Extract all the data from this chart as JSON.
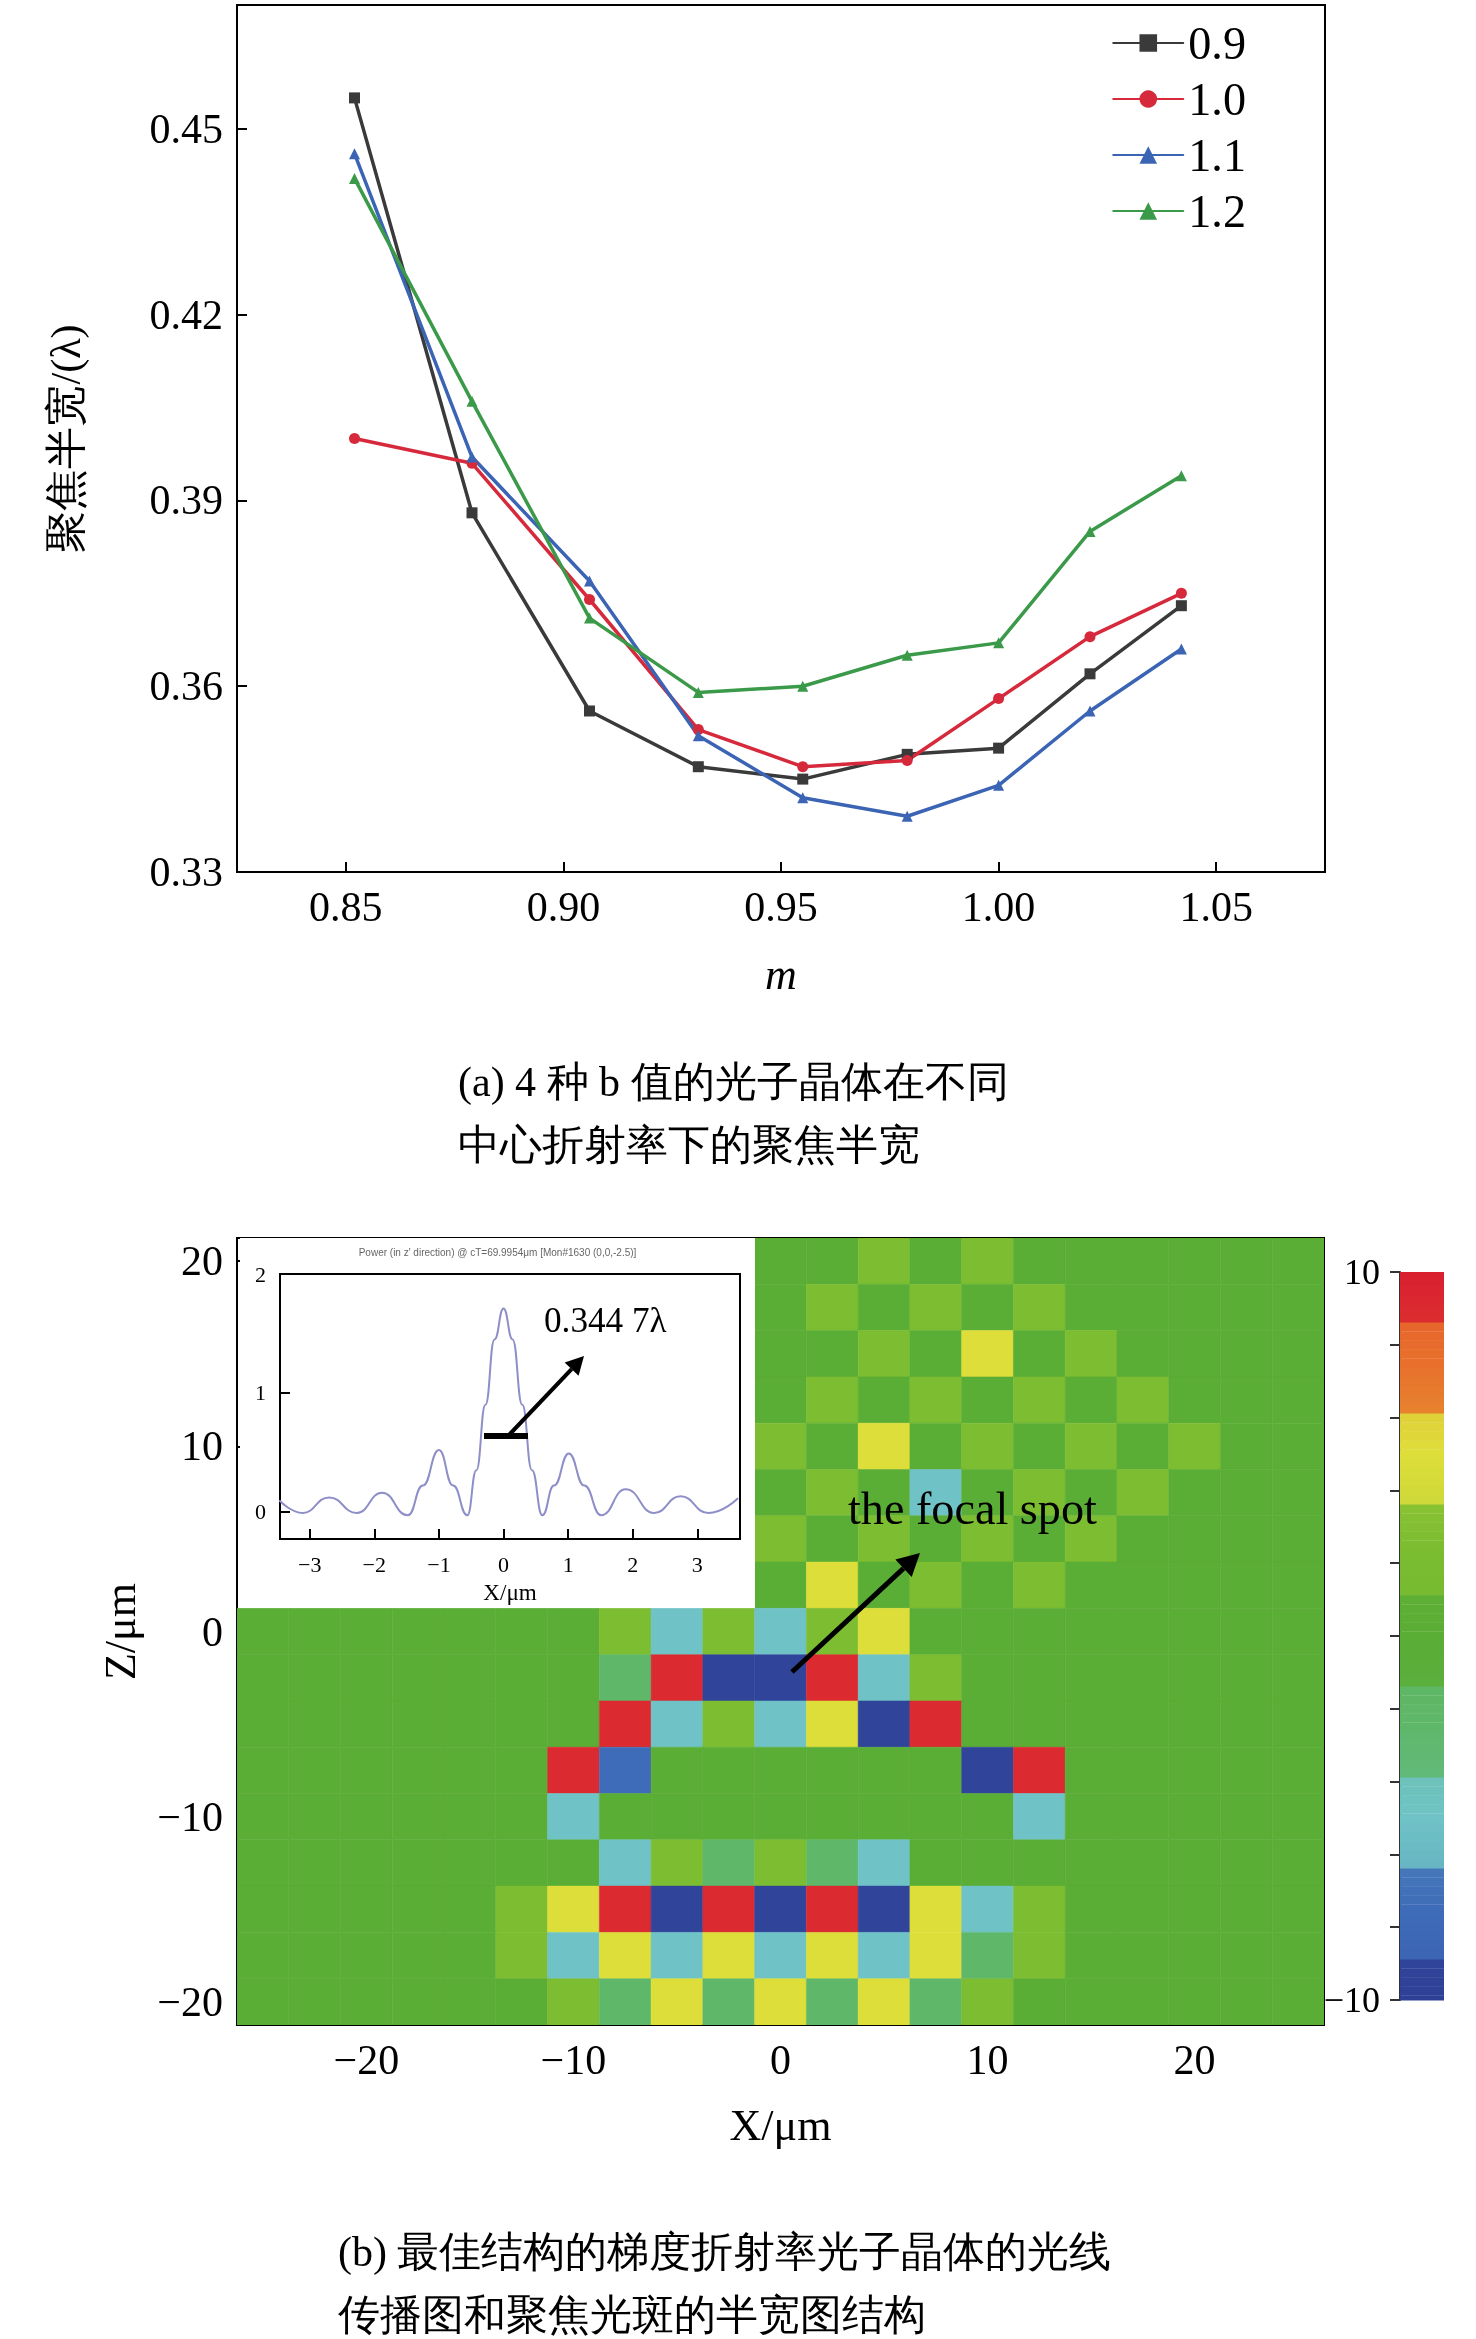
{
  "chart_data": [
    {
      "type": "line",
      "xlabel": "m",
      "ylabel": "聚焦半宽/(λ)",
      "x": [
        0.852,
        0.879,
        0.906,
        0.931,
        0.955,
        0.979,
        1.0,
        1.021,
        1.042
      ],
      "series": [
        {
          "name": "0.9",
          "color": "#3a3a3a",
          "marker": "square",
          "values": [
            0.455,
            0.388,
            0.356,
            0.347,
            0.345,
            0.349,
            0.35,
            0.362,
            0.373
          ]
        },
        {
          "name": "1.0",
          "color": "#d62a3c",
          "marker": "circle",
          "values": [
            0.4,
            0.396,
            0.374,
            0.353,
            0.347,
            0.348,
            0.358,
            0.368,
            0.375
          ]
        },
        {
          "name": "1.1",
          "color": "#3c64b4",
          "marker": "triangle",
          "values": [
            0.446,
            0.397,
            0.377,
            0.352,
            0.342,
            0.339,
            0.344,
            0.356,
            0.366
          ]
        },
        {
          "name": "1.2",
          "color": "#3a9a4a",
          "marker": "triangle",
          "values": [
            0.442,
            0.406,
            0.371,
            0.359,
            0.36,
            0.365,
            0.367,
            0.385,
            0.394
          ]
        }
      ],
      "xlim": [
        0.825,
        1.075
      ],
      "xticks": [
        0.85,
        {
          "value": 0.9,
          "label": "0.90"
        },
        0.95,
        {
          "value": 1,
          "label": "1.00"
        },
        1.05
      ],
      "ylim": [
        0.33,
        0.47
      ],
      "yticks": [
        0.33,
        0.36,
        0.39,
        0.42,
        0.45
      ],
      "legend": "top right",
      "annotations": [
        "(a) 4 种 b 值的光子晶体在不同中心折射率下的聚焦半宽"
      ]
    },
    {
      "type": "heatmap",
      "xlabel": "X/μm",
      "ylabel": "Z/μm",
      "categories": [
        null,
        null,
        "−20",
        null,
        null,
        null,
        "−10",
        null,
        null,
        null,
        "0",
        null,
        null,
        null,
        "10",
        null,
        null,
        null,
        "20",
        null,
        null
      ],
      "y_categories": [
        "20",
        null,
        null,
        null,
        "10",
        null,
        null,
        null,
        "0",
        null,
        null,
        null,
        "−10",
        null,
        null,
        null,
        "−20"
      ],
      "cells": [
        [
          null,
          null,
          null,
          null,
          null,
          null,
          null,
          null,
          null,
          null,
          0,
          0,
          2.5,
          0,
          2.5,
          0,
          0,
          0,
          0,
          0,
          0
        ],
        [
          null,
          null,
          null,
          null,
          null,
          null,
          null,
          null,
          null,
          null,
          0,
          2.5,
          0,
          2.5,
          0,
          2.5,
          0,
          0,
          0,
          0,
          0
        ],
        [
          null,
          null,
          null,
          null,
          null,
          null,
          null,
          null,
          null,
          null,
          0,
          0,
          2.5,
          0,
          5,
          0,
          2.5,
          0,
          0,
          0,
          0
        ],
        [
          null,
          null,
          null,
          null,
          null,
          null,
          null,
          null,
          null,
          null,
          0,
          2.5,
          0,
          2.5,
          0,
          2.5,
          0,
          2.5,
          0,
          0,
          0
        ],
        [
          null,
          null,
          null,
          null,
          null,
          null,
          null,
          null,
          null,
          null,
          2.5,
          0,
          5,
          0,
          2.5,
          0,
          2.5,
          0,
          2.5,
          0,
          0
        ],
        [
          null,
          null,
          null,
          null,
          null,
          null,
          null,
          null,
          null,
          null,
          0,
          2.5,
          0,
          -5,
          0,
          2.5,
          0,
          2.5,
          0,
          0,
          0
        ],
        [
          null,
          null,
          null,
          null,
          null,
          null,
          null,
          null,
          null,
          null,
          2.5,
          0,
          2.5,
          0,
          2.5,
          0,
          2.5,
          0,
          0,
          0,
          0
        ],
        [
          null,
          null,
          null,
          null,
          null,
          null,
          null,
          null,
          null,
          null,
          0,
          5,
          0,
          2.5,
          0,
          2.5,
          0,
          0,
          0,
          0,
          0
        ],
        [
          0,
          0,
          0,
          0,
          0,
          0,
          0,
          2.5,
          -5,
          2.5,
          -5,
          2.5,
          5,
          0,
          0,
          0,
          0,
          0,
          0,
          0,
          0
        ],
        [
          0,
          0,
          0,
          0,
          0,
          0,
          0,
          -2.5,
          9,
          -9,
          -9,
          9,
          -5,
          2.5,
          0,
          0,
          0,
          0,
          0,
          0,
          0
        ],
        [
          0,
          0,
          0,
          0,
          0,
          0,
          0,
          9,
          -5,
          2.5,
          -5,
          5,
          -9,
          9,
          0,
          0,
          0,
          0,
          0,
          0,
          0
        ],
        [
          0,
          0,
          0,
          0,
          0,
          0,
          9,
          -7.5,
          0,
          0,
          0,
          0,
          0,
          0,
          -9,
          9,
          0,
          0,
          0,
          0,
          0
        ],
        [
          0,
          0,
          0,
          0,
          0,
          0,
          -5,
          0,
          0,
          0,
          0,
          0,
          0,
          0,
          0,
          -5,
          0,
          0,
          0,
          0,
          0
        ],
        [
          0,
          0,
          0,
          0,
          0,
          0,
          0,
          -5,
          2.5,
          -2.5,
          2.5,
          -2.5,
          -5,
          0,
          0,
          0,
          0,
          0,
          0,
          0,
          0
        ],
        [
          0,
          0,
          0,
          0,
          0,
          2.5,
          5,
          9,
          -9,
          9,
          -9,
          9,
          -9,
          5,
          -5,
          2.5,
          0,
          0,
          0,
          0,
          0
        ],
        [
          0,
          0,
          0,
          0,
          0,
          2.5,
          -5,
          5,
          -5,
          5,
          -5,
          5,
          -5,
          5,
          -2.5,
          2.5,
          0,
          0,
          0,
          0,
          0
        ],
        [
          0,
          0,
          0,
          0,
          0,
          0,
          2.5,
          -2.5,
          5,
          -2.5,
          5,
          -2.5,
          5,
          -2.5,
          2.5,
          0,
          0,
          0,
          0,
          0,
          0
        ]
      ],
      "clim": [
        -10,
        10
      ],
      "cticks": [
        {
          "value": -10,
          "label": "−10"
        },
        {
          "value": -8,
          "label": null
        },
        {
          "value": -6,
          "label": null
        },
        {
          "value": -4,
          "label": null
        },
        {
          "value": -2,
          "label": null
        },
        {
          "value": 0,
          "label": null
        },
        {
          "value": 2,
          "label": null
        },
        {
          "value": 4,
          "label": null
        },
        {
          "value": 6,
          "label": null
        },
        {
          "value": 8,
          "label": null
        },
        10
      ],
      "annotations": [
        "the focal spot",
        "(b) 最佳结构的梯度折射率光子晶体的光线传播图和聚焦光斑的半宽图结构"
      ]
    },
    {
      "type": "line",
      "title": "Power (in z' direction) @ cT=69.9954μm [Mon#1630 (0,0,-2.5)]",
      "xlabel": "X/μm",
      "x": [
        -3.46,
        -3.11,
        -2.7,
        -2.27,
        -1.88,
        -1.48,
        -1.25,
        -1.0,
        -0.78,
        -0.56,
        -0.42,
        -0.28,
        -0.14,
        0,
        0.14,
        0.29,
        0.44,
        0.6,
        0.78,
        1.01,
        1.25,
        1.51,
        1.89,
        2.33,
        2.74,
        3.17,
        3.62
      ],
      "series": [
        {
          "color": "#8e8ec8",
          "values": [
            0.09,
            -0.01,
            0.12,
            -0.01,
            0.16,
            -0.03,
            0.22,
            0.52,
            0.22,
            -0.03,
            0.35,
            0.9,
            1.45,
            1.71,
            1.45,
            0.9,
            0.35,
            -0.03,
            0.22,
            0.49,
            0.22,
            -0.03,
            0.19,
            -0.01,
            0.13,
            -0.01,
            0.11
          ]
        }
      ],
      "xlim": [
        -3.46,
        3.66
      ],
      "xticks": [
        {
          "value": -3,
          "label": "−3"
        },
        {
          "value": -2,
          "label": "−2"
        },
        {
          "value": -1,
          "label": "−1"
        },
        0,
        1,
        2,
        3
      ],
      "ylim": [
        -0.23,
        2
      ],
      "yticks": [
        0,
        1,
        2
      ],
      "annotations": [
        "0.344 7λ"
      ]
    }
  ]
}
